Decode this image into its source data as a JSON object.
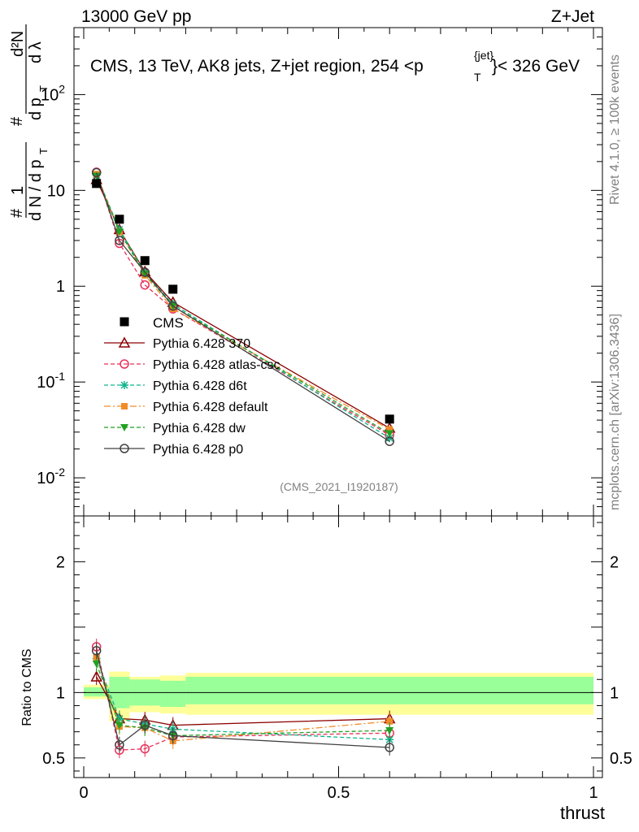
{
  "header": {
    "left": "13000 GeV pp",
    "right": "Z+Jet",
    "title_main": "CMS, 13 TeV, AK8 jets, Z+jet region, 254 <p",
    "title_sup": "{jet}",
    "title_sub": "T",
    "title_end": "}< 326 GeV",
    "side_top": "Rivet 4.1.0, ≥ 100k events",
    "side_bottom": "mcplots.cern.ch [arXiv:1306.3436]",
    "watermark": "(CMS_2021_I1920187)"
  },
  "chart_data": [
    {
      "type": "line",
      "panel": "main",
      "yscale": "log",
      "ylim": [
        0.004,
        500
      ],
      "xlim": [
        -0.02,
        1.02
      ],
      "ylabel": "# 1 / (dN / d p_T) # d²N / (d p_T dλ)",
      "y_tick_labels": [
        "10^-2",
        "10^-1",
        "1",
        "10",
        "10^2"
      ],
      "x": [
        0.025,
        0.07,
        0.12,
        0.175,
        0.6
      ],
      "data": {
        "name": "CMS",
        "color": "#000000",
        "values": [
          11.8,
          5.0,
          1.85,
          0.93,
          0.041
        ]
      },
      "series": [
        {
          "name": "Pythia 6.428 370",
          "color": "#8b0000",
          "marker": "triangle-open",
          "dash": "solid",
          "values": [
            13.0,
            3.9,
            1.42,
            0.68,
            0.033
          ]
        },
        {
          "name": "Pythia 6.428 atlas-csc",
          "color": "#e8305a",
          "marker": "circle-open",
          "dash": "dash",
          "values": [
            15.5,
            2.8,
            1.03,
            0.58,
            0.028
          ]
        },
        {
          "name": "Pythia 6.428 d6t",
          "color": "#10b48c",
          "marker": "star",
          "dash": "dash",
          "values": [
            14.5,
            3.9,
            1.38,
            0.65,
            0.026
          ]
        },
        {
          "name": "Pythia 6.428 default",
          "color": "#f28c28",
          "marker": "square",
          "dash": "dashdot",
          "values": [
            14.8,
            3.7,
            1.3,
            0.58,
            0.032
          ]
        },
        {
          "name": "Pythia 6.428 dw",
          "color": "#22a022",
          "marker": "triangle-down",
          "dash": "dash",
          "values": [
            14.2,
            3.7,
            1.35,
            0.62,
            0.029
          ]
        },
        {
          "name": "Pythia 6.428 p0",
          "color": "#404040",
          "marker": "circle-open",
          "dash": "solid",
          "values": [
            15.3,
            3.0,
            1.4,
            0.62,
            0.024
          ]
        }
      ]
    },
    {
      "type": "line",
      "panel": "ratio",
      "ylabel": "Ratio to CMS",
      "xlabel": "thrust",
      "ylim": [
        0.35,
        2.35
      ],
      "x_tick_labels": [
        "0",
        "0.5",
        "1"
      ],
      "y_tick_labels": [
        "0.5",
        "1",
        "2"
      ],
      "x": [
        0.025,
        0.07,
        0.12,
        0.175,
        0.6
      ],
      "bands": {
        "edges": [
          0.0,
          0.05,
          0.09,
          0.15,
          0.2,
          1.0
        ],
        "inner": [
          [
            0.97,
            1.04
          ],
          [
            0.88,
            1.12
          ],
          [
            0.9,
            1.1
          ],
          [
            0.89,
            1.09
          ],
          [
            0.91,
            1.12
          ]
        ],
        "outer": [
          [
            0.95,
            1.06
          ],
          [
            0.78,
            1.16
          ],
          [
            0.85,
            1.12
          ],
          [
            0.84,
            1.13
          ],
          [
            0.83,
            1.15
          ]
        ]
      },
      "series": [
        {
          "name": "Pythia 6.428 370",
          "values": [
            1.12,
            0.8,
            0.79,
            0.75,
            0.8
          ]
        },
        {
          "name": "Pythia 6.428 atlas-csc",
          "values": [
            1.35,
            0.56,
            0.57,
            0.66,
            0.69
          ]
        },
        {
          "name": "Pythia 6.428 d6t",
          "values": [
            1.26,
            0.8,
            0.76,
            0.72,
            0.64
          ]
        },
        {
          "name": "Pythia 6.428 default",
          "values": [
            1.27,
            0.74,
            0.73,
            0.63,
            0.78
          ]
        },
        {
          "name": "Pythia 6.428 dw",
          "values": [
            1.22,
            0.75,
            0.73,
            0.67,
            0.71
          ]
        },
        {
          "name": "Pythia 6.428 p0",
          "values": [
            1.32,
            0.6,
            0.75,
            0.67,
            0.58
          ]
        }
      ]
    }
  ]
}
